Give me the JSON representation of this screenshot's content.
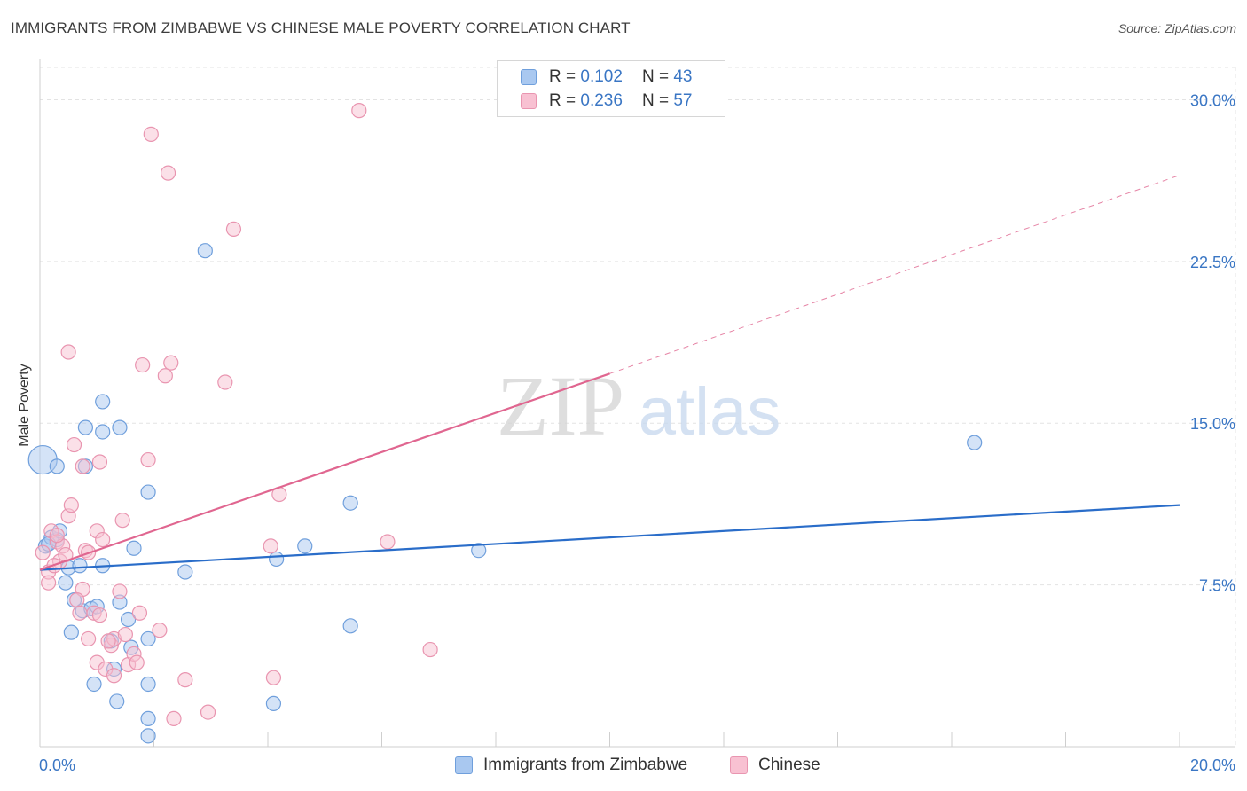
{
  "chart_data": {
    "type": "scatter",
    "title": "IMMIGRANTS FROM ZIMBABWE VS CHINESE MALE POVERTY CORRELATION CHART",
    "source": "Source: ZipAtlas.com",
    "ylabel": "Male Poverty",
    "xlim": [
      0,
      20
    ],
    "ylim": [
      0,
      31.5
    ],
    "x_tick_labels": [
      "0.0%",
      "20.0%"
    ],
    "y_ticks": [
      7.5,
      15.0,
      22.5,
      30.0
    ],
    "y_tick_labels": [
      "7.5%",
      "15.0%",
      "22.5%",
      "30.0%"
    ],
    "grid": true,
    "watermark": {
      "part1": "ZIP",
      "part2": "atlas"
    },
    "legend_stats": [
      {
        "r_label": "R =",
        "r_value": "0.102",
        "n_label": "N =",
        "n_value": "43"
      },
      {
        "r_label": "R =",
        "r_value": "0.236",
        "n_label": "N =",
        "n_value": "57"
      }
    ],
    "series": [
      {
        "name": "Immigrants from Zimbabwe",
        "fill": "#a9c8f0",
        "stroke": "#6f9fdc",
        "line_color": "#2a6dc9",
        "trend": {
          "x0": 0.0,
          "y0": 8.2,
          "x1": 20.0,
          "y1": 11.2
        },
        "points": [
          [
            0.05,
            13.3
          ],
          [
            0.3,
            13.0
          ],
          [
            0.1,
            9.3
          ],
          [
            0.2,
            9.7
          ],
          [
            0.3,
            9.6
          ],
          [
            0.35,
            10.0
          ],
          [
            0.5,
            8.3
          ],
          [
            0.7,
            8.4
          ],
          [
            0.45,
            7.6
          ],
          [
            0.6,
            6.8
          ],
          [
            0.75,
            6.3
          ],
          [
            0.9,
            6.4
          ],
          [
            0.55,
            5.3
          ],
          [
            1.1,
            8.4
          ],
          [
            0.8,
            13.0
          ],
          [
            0.8,
            14.8
          ],
          [
            1.1,
            14.6
          ],
          [
            1.4,
            14.8
          ],
          [
            1.1,
            16.0
          ],
          [
            1.4,
            6.7
          ],
          [
            1.55,
            5.9
          ],
          [
            1.25,
            4.9
          ],
          [
            1.6,
            4.6
          ],
          [
            1.3,
            3.6
          ],
          [
            0.95,
            2.9
          ],
          [
            1.35,
            2.1
          ],
          [
            1.9,
            2.9
          ],
          [
            1.9,
            5.0
          ],
          [
            1.9,
            11.8
          ],
          [
            2.55,
            8.1
          ],
          [
            2.9,
            23.0
          ],
          [
            1.9,
            1.3
          ],
          [
            1.9,
            0.5
          ],
          [
            4.15,
            8.7
          ],
          [
            4.65,
            9.3
          ],
          [
            5.45,
            11.3
          ],
          [
            5.45,
            5.6
          ],
          [
            4.1,
            2.0
          ],
          [
            7.7,
            9.1
          ],
          [
            16.4,
            14.1
          ],
          [
            0.15,
            9.4
          ],
          [
            1.0,
            6.5
          ],
          [
            1.65,
            9.2
          ]
        ]
      },
      {
        "name": "Chinese",
        "fill": "#f8c1d2",
        "stroke": "#e995b0",
        "line_color": "#e06690",
        "trend": {
          "x0": 0.0,
          "y0": 8.2,
          "x1": 10.0,
          "y1": 17.3
        },
        "trend_extension": {
          "x0": 10.0,
          "y0": 17.3,
          "x1": 20.0,
          "y1": 26.5
        },
        "points": [
          [
            0.05,
            9.0
          ],
          [
            0.15,
            8.1
          ],
          [
            0.15,
            7.6
          ],
          [
            0.2,
            10.0
          ],
          [
            0.3,
            9.5
          ],
          [
            0.35,
            8.6
          ],
          [
            0.4,
            9.3
          ],
          [
            0.45,
            8.9
          ],
          [
            0.5,
            10.7
          ],
          [
            0.5,
            18.3
          ],
          [
            0.55,
            11.2
          ],
          [
            0.6,
            14.0
          ],
          [
            0.75,
            13.0
          ],
          [
            0.75,
            7.3
          ],
          [
            0.8,
            9.1
          ],
          [
            0.85,
            9.0
          ],
          [
            0.85,
            5.0
          ],
          [
            0.95,
            6.2
          ],
          [
            1.0,
            10.0
          ],
          [
            1.05,
            13.2
          ],
          [
            1.1,
            9.6
          ],
          [
            1.0,
            3.9
          ],
          [
            1.15,
            3.6
          ],
          [
            1.25,
            4.7
          ],
          [
            1.3,
            3.3
          ],
          [
            1.3,
            5.0
          ],
          [
            1.4,
            7.2
          ],
          [
            1.45,
            10.5
          ],
          [
            1.5,
            5.2
          ],
          [
            1.55,
            3.8
          ],
          [
            1.65,
            4.3
          ],
          [
            1.7,
            3.9
          ],
          [
            1.75,
            6.2
          ],
          [
            1.8,
            17.7
          ],
          [
            1.9,
            13.3
          ],
          [
            2.1,
            5.4
          ],
          [
            2.2,
            17.2
          ],
          [
            2.3,
            17.8
          ],
          [
            1.95,
            28.4
          ],
          [
            2.25,
            26.6
          ],
          [
            2.55,
            3.1
          ],
          [
            2.35,
            1.3
          ],
          [
            2.95,
            1.6
          ],
          [
            3.25,
            16.9
          ],
          [
            3.4,
            24.0
          ],
          [
            4.1,
            3.2
          ],
          [
            4.2,
            11.7
          ],
          [
            4.05,
            9.3
          ],
          [
            5.6,
            29.5
          ],
          [
            6.1,
            9.5
          ],
          [
            6.85,
            4.5
          ],
          [
            0.3,
            9.8
          ],
          [
            0.65,
            6.8
          ],
          [
            1.2,
            4.9
          ],
          [
            0.25,
            8.4
          ],
          [
            1.05,
            6.1
          ],
          [
            0.7,
            6.2
          ]
        ]
      }
    ]
  }
}
